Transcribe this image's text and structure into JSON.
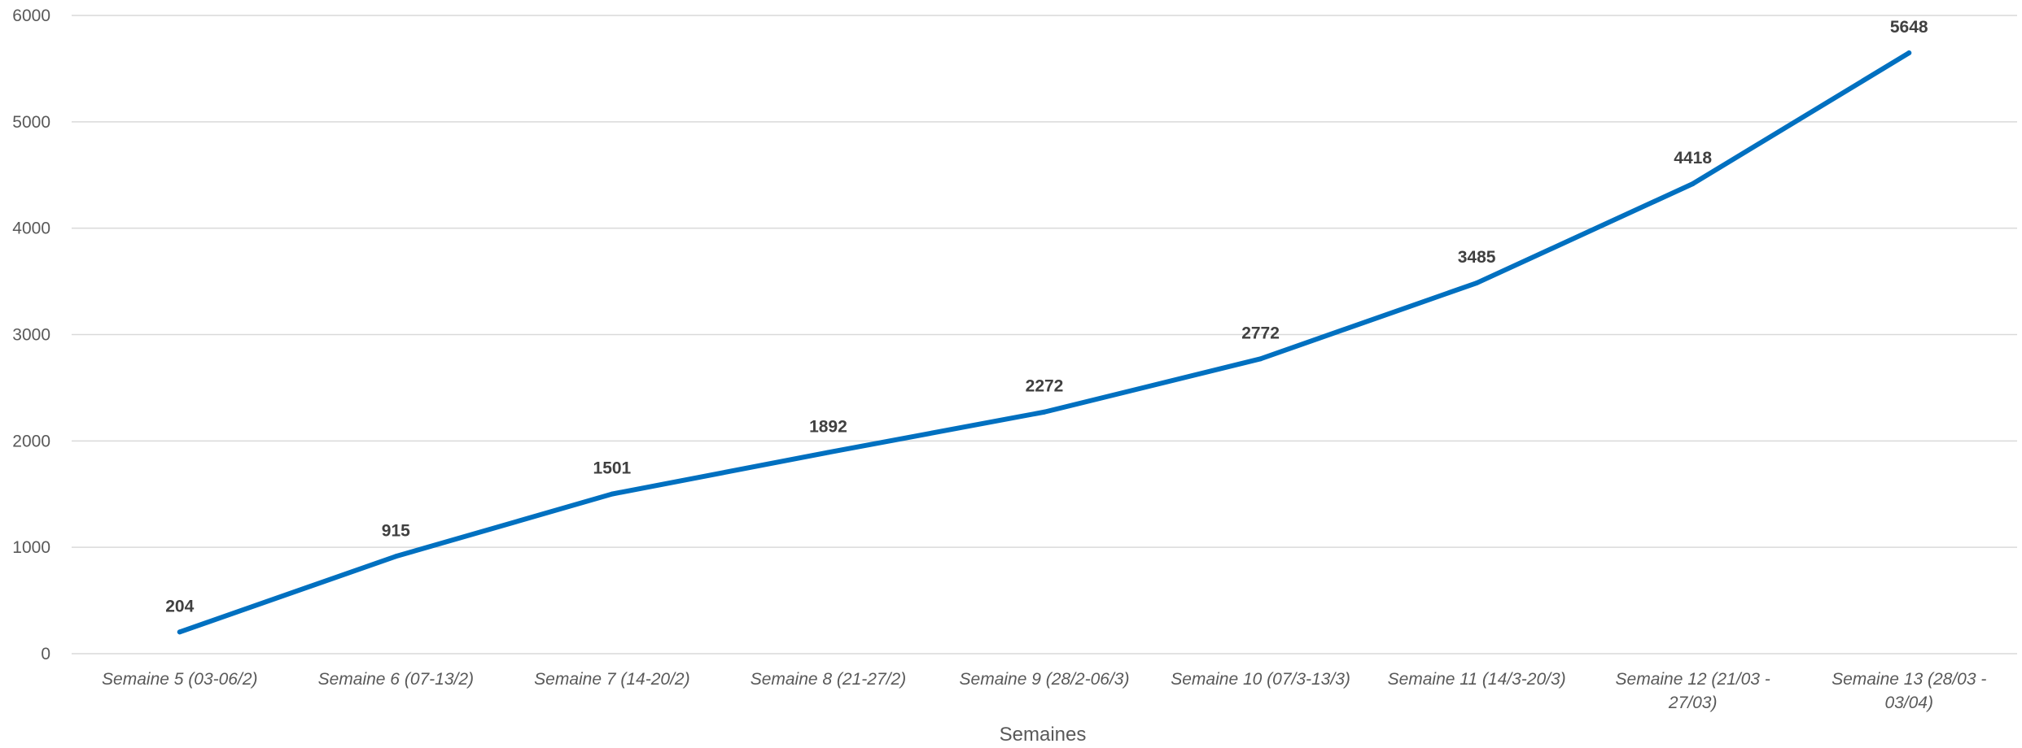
{
  "chart_data": {
    "type": "line",
    "title": "",
    "xlabel": "Semaines",
    "ylabel": "",
    "ylim": [
      0,
      6000
    ],
    "yticks": [
      0,
      1000,
      2000,
      3000,
      4000,
      5000,
      6000
    ],
    "grid": true,
    "legend": "none",
    "categories": [
      [
        "Semaine 5  (03-06/2)"
      ],
      [
        "Semaine 6 (07-13/2)"
      ],
      [
        "Semaine 7 (14-20/2)"
      ],
      [
        "Semaine 8 (21-27/2)"
      ],
      [
        "Semaine 9 (28/2-06/3)"
      ],
      [
        "Semaine 10 (07/3-13/3)"
      ],
      [
        "Semaine 11 (14/3-20/3)"
      ],
      [
        "Semaine 12 (21/03 -",
        "27/03)"
      ],
      [
        "Semaine 13 (28/03 -",
        "03/04)"
      ]
    ],
    "series": [
      {
        "values": [
          204,
          915,
          1501,
          1892,
          2272,
          2772,
          3485,
          4418,
          5648
        ],
        "color": "#0070c0"
      }
    ]
  }
}
